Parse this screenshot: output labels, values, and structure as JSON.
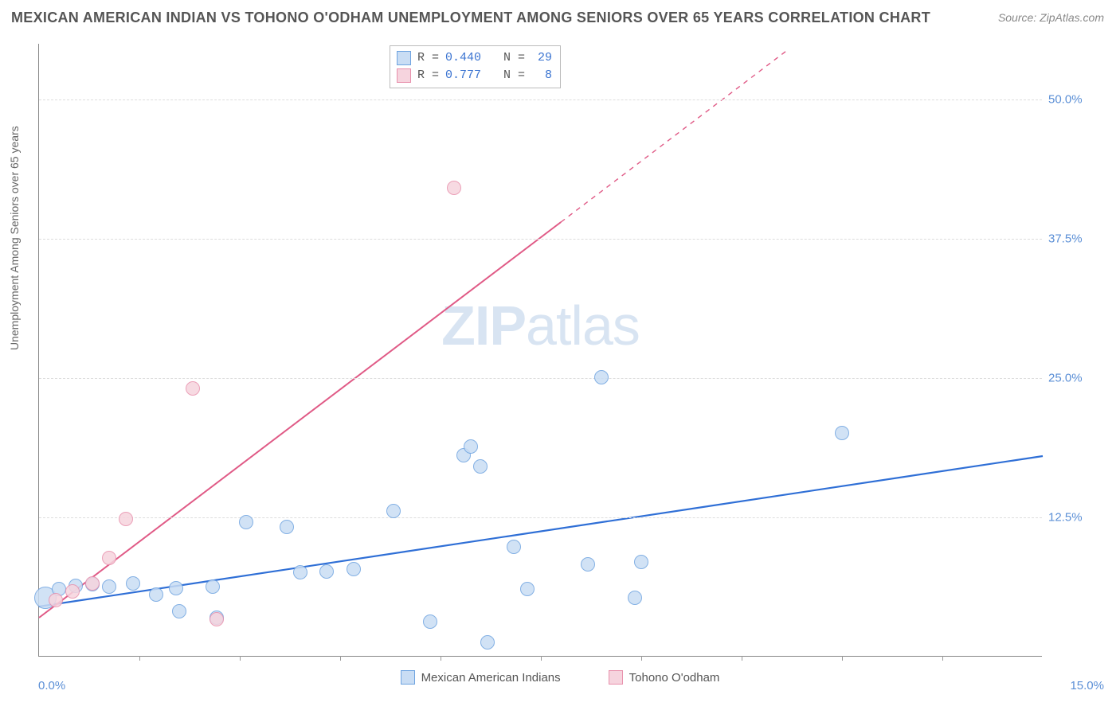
{
  "title": "MEXICAN AMERICAN INDIAN VS TOHONO O'ODHAM UNEMPLOYMENT AMONG SENIORS OVER 65 YEARS CORRELATION CHART",
  "source": "Source: ZipAtlas.com",
  "y_axis_label": "Unemployment Among Seniors over 65 years",
  "watermark_a": "ZIP",
  "watermark_b": "atlas",
  "chart": {
    "type": "scatter",
    "xlim": [
      0,
      15
    ],
    "ylim": [
      0,
      55
    ],
    "x_origin_label": "0.0%",
    "x_max_label": "15.0%",
    "x_minor_ticks": [
      1.5,
      3.0,
      4.5,
      6.0,
      7.5,
      9.0,
      10.5,
      12.0,
      13.5
    ],
    "y_ticks": [
      {
        "v": 12.5,
        "label": "12.5%"
      },
      {
        "v": 25.0,
        "label": "25.0%"
      },
      {
        "v": 37.5,
        "label": "37.5%"
      },
      {
        "v": 50.0,
        "label": "50.0%"
      }
    ],
    "grid_color": "#dddddd",
    "background_color": "#ffffff",
    "series": [
      {
        "name": "Mexican American Indians",
        "color_fill": "#c9ddf4",
        "color_stroke": "#6ea3e0",
        "marker_radius": 9,
        "trend": {
          "x1": 0,
          "y1": 4.5,
          "x2": 15,
          "y2": 18.0,
          "color": "#2f6fd6",
          "width": 2.2
        },
        "stats": {
          "r": "0.440",
          "n": "29"
        },
        "points": [
          {
            "x": 0.1,
            "y": 5.2,
            "r": 14
          },
          {
            "x": 0.3,
            "y": 6.0
          },
          {
            "x": 0.55,
            "y": 6.3
          },
          {
            "x": 0.8,
            "y": 6.4
          },
          {
            "x": 1.05,
            "y": 6.2
          },
          {
            "x": 1.4,
            "y": 6.5
          },
          {
            "x": 1.75,
            "y": 5.5
          },
          {
            "x": 2.05,
            "y": 6.1
          },
          {
            "x": 2.1,
            "y": 4.0
          },
          {
            "x": 2.6,
            "y": 6.2
          },
          {
            "x": 2.65,
            "y": 3.4
          },
          {
            "x": 3.1,
            "y": 12.0
          },
          {
            "x": 3.7,
            "y": 11.6
          },
          {
            "x": 3.9,
            "y": 7.5
          },
          {
            "x": 4.3,
            "y": 7.6
          },
          {
            "x": 4.7,
            "y": 7.8
          },
          {
            "x": 5.3,
            "y": 13.0
          },
          {
            "x": 5.85,
            "y": 3.1
          },
          {
            "x": 6.35,
            "y": 18.0
          },
          {
            "x": 6.45,
            "y": 18.8
          },
          {
            "x": 6.6,
            "y": 17.0
          },
          {
            "x": 6.7,
            "y": 1.2
          },
          {
            "x": 7.1,
            "y": 9.8
          },
          {
            "x": 7.3,
            "y": 6.0
          },
          {
            "x": 8.2,
            "y": 8.2
          },
          {
            "x": 8.4,
            "y": 25.0
          },
          {
            "x": 8.9,
            "y": 5.2
          },
          {
            "x": 9.0,
            "y": 8.4
          },
          {
            "x": 12.0,
            "y": 20.0
          }
        ]
      },
      {
        "name": "Tohono O'odham",
        "color_fill": "#f6d4de",
        "color_stroke": "#e890ac",
        "marker_radius": 9,
        "trend": {
          "x1": 0,
          "y1": 3.5,
          "x2": 7.8,
          "y2": 39.0,
          "color": "#e05a86",
          "width": 2.0
        },
        "trend_ext": {
          "x1": 7.8,
          "y1": 39.0,
          "x2": 11.2,
          "y2": 54.5
        },
        "stats": {
          "r": "0.777",
          "n": "8"
        },
        "points": [
          {
            "x": 0.25,
            "y": 5.0
          },
          {
            "x": 0.5,
            "y": 5.8
          },
          {
            "x": 0.8,
            "y": 6.5
          },
          {
            "x": 1.05,
            "y": 8.8
          },
          {
            "x": 1.3,
            "y": 12.3
          },
          {
            "x": 2.3,
            "y": 24.0
          },
          {
            "x": 2.65,
            "y": 3.3
          },
          {
            "x": 6.2,
            "y": 42.0
          }
        ]
      }
    ]
  },
  "legend_labels": {
    "r_prefix": "R =",
    "n_prefix": "N ="
  }
}
